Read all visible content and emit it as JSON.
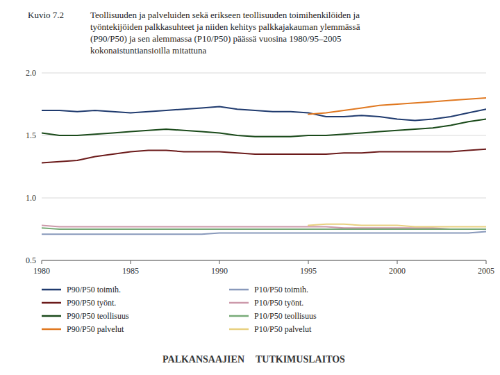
{
  "chart_data": {
    "type": "line",
    "title": "Kuvio 7.2",
    "subtitle": "Teollisuuden ja palveluiden sekä erikseen teollisuuden toimihenkilöiden ja\ntyöntekijöiden palkkasuhteet ja niiden kehitys palkkajakauman ylemmässä\n(P90/P50) ja sen alemmassa (P10/P50) päässä vuosina 1980/95–2005\nkokonaistuntiansioilla mitattuna",
    "x": [
      1980,
      1981,
      1982,
      1983,
      1984,
      1985,
      1986,
      1987,
      1988,
      1989,
      1990,
      1991,
      1992,
      1993,
      1994,
      1995,
      1996,
      1997,
      1998,
      1999,
      2000,
      2001,
      2002,
      2003,
      2004,
      2005
    ],
    "xlim": [
      1980,
      2005
    ],
    "xticks": [
      1980,
      1985,
      1990,
      1995,
      2000,
      2005
    ],
    "ylim": [
      0.5,
      2.0
    ],
    "yticks": [
      0.5,
      {
        "value": 1,
        "label": "1.0"
      },
      1.5,
      {
        "value": 2,
        "label": "2.0"
      }
    ],
    "grid": true,
    "legend": "bottom",
    "series": [
      {
        "name": "P90/P50 toimih.",
        "color": "#1f3a6e",
        "values": [
          1.7,
          1.7,
          1.69,
          1.7,
          1.69,
          1.68,
          1.69,
          1.7,
          1.71,
          1.72,
          1.73,
          1.71,
          1.7,
          1.69,
          1.69,
          1.68,
          1.65,
          1.65,
          1.66,
          1.65,
          1.63,
          1.62,
          1.63,
          1.65,
          1.68,
          1.71
        ]
      },
      {
        "name": "P90/P50 työnt.",
        "color": "#6b1a1a",
        "values": [
          1.28,
          1.29,
          1.3,
          1.33,
          1.35,
          1.37,
          1.38,
          1.38,
          1.37,
          1.37,
          1.37,
          1.36,
          1.35,
          1.35,
          1.35,
          1.35,
          1.35,
          1.36,
          1.36,
          1.37,
          1.37,
          1.37,
          1.37,
          1.37,
          1.38,
          1.39
        ]
      },
      {
        "name": "P90/P50 teollisuus",
        "color": "#1a4a1a",
        "values": [
          1.52,
          1.5,
          1.5,
          1.51,
          1.52,
          1.53,
          1.54,
          1.55,
          1.54,
          1.53,
          1.52,
          1.5,
          1.49,
          1.49,
          1.49,
          1.5,
          1.5,
          1.51,
          1.52,
          1.53,
          1.54,
          1.55,
          1.56,
          1.58,
          1.61,
          1.63
        ]
      },
      {
        "name": "P90/P50 palvelut",
        "color": "#e07820",
        "values": [
          null,
          null,
          null,
          null,
          null,
          null,
          null,
          null,
          null,
          null,
          null,
          null,
          null,
          null,
          null,
          1.67,
          1.68,
          1.7,
          1.72,
          1.74,
          1.75,
          1.76,
          1.77,
          1.78,
          1.79,
          1.8
        ]
      },
      {
        "name": "P10/P50 toimih.",
        "color": "#8899bb",
        "values": [
          0.71,
          0.71,
          0.71,
          0.71,
          0.71,
          0.71,
          0.71,
          0.71,
          0.71,
          0.71,
          0.72,
          0.72,
          0.72,
          0.72,
          0.72,
          0.72,
          0.72,
          0.72,
          0.72,
          0.72,
          0.72,
          0.72,
          0.72,
          0.72,
          0.72,
          0.73
        ]
      },
      {
        "name": "P10/P50 työnt.",
        "color": "#cc99aa",
        "values": [
          0.78,
          0.77,
          0.77,
          0.77,
          0.77,
          0.77,
          0.77,
          0.77,
          0.77,
          0.77,
          0.77,
          0.77,
          0.77,
          0.77,
          0.77,
          0.77,
          0.77,
          0.76,
          0.76,
          0.76,
          0.76,
          0.76,
          0.76,
          0.75,
          0.75,
          0.75
        ]
      },
      {
        "name": "P10/P50 teollisuus",
        "color": "#77aa77",
        "values": [
          0.76,
          0.75,
          0.75,
          0.75,
          0.75,
          0.75,
          0.75,
          0.75,
          0.75,
          0.75,
          0.75,
          0.75,
          0.75,
          0.75,
          0.75,
          0.75,
          0.75,
          0.75,
          0.75,
          0.75,
          0.75,
          0.75,
          0.75,
          0.75,
          0.75,
          0.75
        ]
      },
      {
        "name": "P10/P50 palvelut",
        "color": "#e8d080",
        "values": [
          null,
          null,
          null,
          null,
          null,
          null,
          null,
          null,
          null,
          null,
          null,
          null,
          null,
          null,
          null,
          0.78,
          0.79,
          0.79,
          0.78,
          0.78,
          0.78,
          0.77,
          0.77,
          0.77,
          0.77,
          0.77
        ]
      }
    ],
    "annotations": [
      "PALKANSAAJIEN",
      "TUTKIMUSLAITOS"
    ]
  }
}
